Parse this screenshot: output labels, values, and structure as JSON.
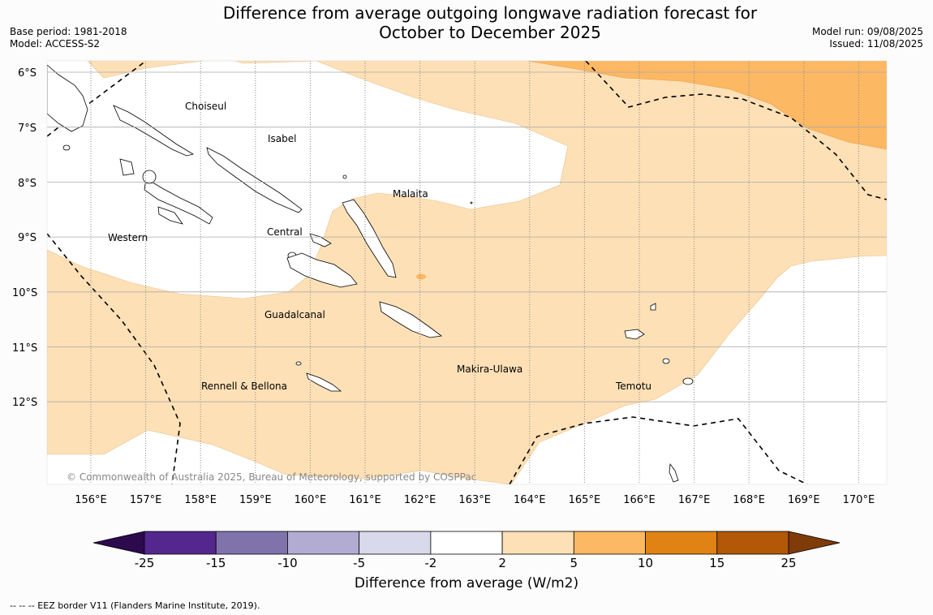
{
  "title_line1": "Difference from average outgoing longwave radiation forecast for",
  "title_line2": "October to December 2025",
  "meta_left": {
    "base_period": "Base period: 1981-2018",
    "model": "Model: ACCESS-S2"
  },
  "meta_right": {
    "model_run": "Model run: 09/08/2025",
    "issued": "Issued: 11/08/2025"
  },
  "copyright": "© Commonwealth of Australia 2025, Bureau of Meteorology, supported by COSPPac",
  "lat_labels": [
    "6°S",
    "7°S",
    "8°S",
    "9°S",
    "10°S",
    "11°S",
    "12°S"
  ],
  "lon_labels": [
    "156°E",
    "157°E",
    "158°E",
    "159°E",
    "160°E",
    "161°E",
    "162°E",
    "163°E",
    "164°E",
    "165°E",
    "166°E",
    "167°E",
    "168°E",
    "169°E",
    "170°E"
  ],
  "provinces": [
    "Choiseul",
    "Isabel",
    "Malaita",
    "Western",
    "Central",
    "Guadalcanal",
    "Makira-Ulawa",
    "Rennell & Bellona",
    "Temotu"
  ],
  "colorbar": {
    "title": "Difference from average (W/m2)",
    "ticks": [
      "-25",
      "-15",
      "-10",
      "-5",
      "-2",
      "2",
      "5",
      "10",
      "15",
      "25"
    ],
    "colors": [
      "#2d0a4e",
      "#54278f",
      "#8073ac",
      "#b2abd2",
      "#d8daeb",
      "#ffffff",
      "#fee0b6",
      "#fdb863",
      "#e08214",
      "#b35806",
      "#7f3b08"
    ]
  },
  "footnote": "--  --  -- EEZ border V11 (Flanders Marine Institute, 2019)."
}
